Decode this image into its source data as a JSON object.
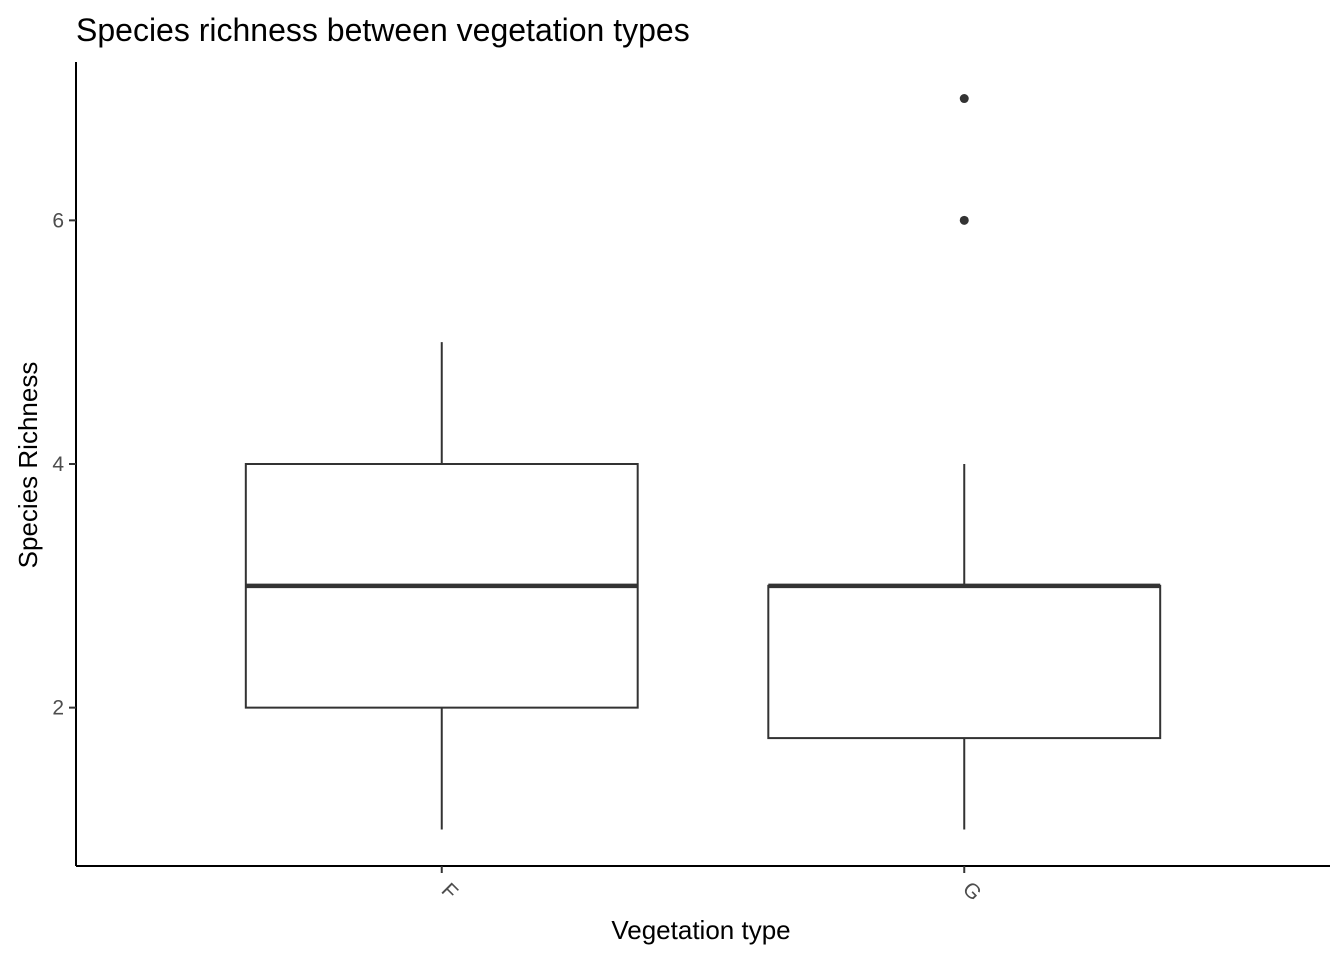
{
  "chart_data": {
    "type": "boxplot",
    "title": "Species richness between vegetation types",
    "xlabel": "Vegetation type",
    "ylabel": "Species Richness",
    "categories": [
      "F",
      "G"
    ],
    "boxes": [
      {
        "category": "F",
        "lower_whisker": 1,
        "q1": 2,
        "median": 3,
        "q3": 4,
        "upper_whisker": 5,
        "outliers": []
      },
      {
        "category": "G",
        "lower_whisker": 1,
        "q1": 1.75,
        "median": 3,
        "q3": 3,
        "upper_whisker": 4,
        "outliers": [
          6,
          7
        ]
      }
    ],
    "yticks": [
      2,
      4,
      6
    ],
    "ylim": [
      0.7,
      7.3
    ],
    "grid": false,
    "legend": "none",
    "x_tick_label_rotation": "45"
  }
}
